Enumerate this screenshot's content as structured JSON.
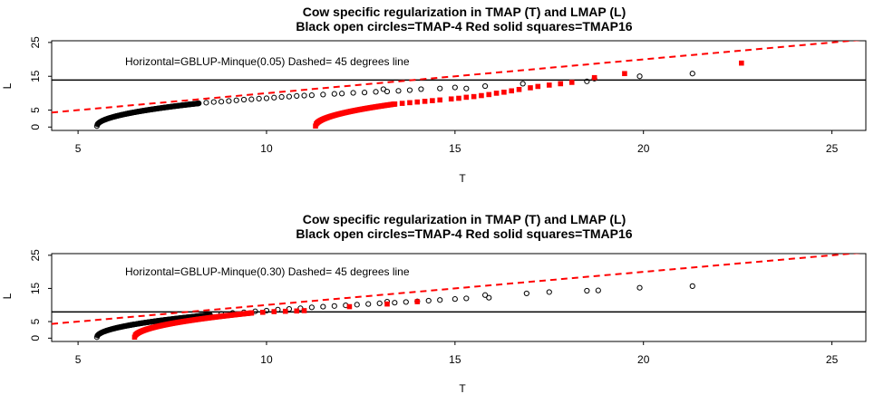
{
  "chart_data": [
    {
      "type": "scatter",
      "title_line1": "Cow specific regularization in TMAP (T) and LMAP (L)",
      "title_line2": "Black open circles=TMAP-4 Red solid squares=TMAP16",
      "xlabel": "T",
      "ylabel": "L",
      "xlim": [
        4.3,
        25.9
      ],
      "ylim": [
        -1,
        25.5
      ],
      "x_ticks": [
        5,
        10,
        15,
        20,
        25
      ],
      "y_ticks": [
        0,
        5,
        15,
        25
      ],
      "annotation": "Horizontal=GBLUP-Minque(0.05)  Dashed= 45 degrees line",
      "horizontal_line": 13.9,
      "diagonal_line": {
        "slope": 1,
        "intercept": 0
      },
      "colors": {
        "tmap4": "#000000",
        "tmap16": "#ff0000",
        "hline": "#000000",
        "dashed": "#ff0000"
      },
      "grid": false,
      "series": [
        {
          "name": "TMAP-4",
          "marker": "open-circle",
          "dense_curve": {
            "x0": 5.5,
            "x1": 8.2,
            "y0": 0.3,
            "y1": 7.0,
            "count": 180
          },
          "points": [
            [
              8.2,
              7.0
            ],
            [
              8.4,
              7.2
            ],
            [
              8.6,
              7.4
            ],
            [
              8.8,
              7.5
            ],
            [
              9.0,
              7.7
            ],
            [
              9.2,
              7.9
            ],
            [
              9.4,
              8.1
            ],
            [
              9.6,
              8.2
            ],
            [
              9.8,
              8.4
            ],
            [
              10.0,
              8.5
            ],
            [
              10.2,
              8.7
            ],
            [
              10.4,
              8.9
            ],
            [
              10.6,
              9.0
            ],
            [
              10.8,
              9.2
            ],
            [
              11.0,
              9.3
            ],
            [
              11.2,
              9.4
            ],
            [
              11.5,
              9.6
            ],
            [
              11.8,
              9.8
            ],
            [
              12.0,
              9.9
            ],
            [
              12.3,
              10.1
            ],
            [
              12.6,
              10.2
            ],
            [
              12.9,
              10.4
            ],
            [
              13.1,
              11.2
            ],
            [
              13.2,
              10.5
            ],
            [
              13.5,
              10.7
            ],
            [
              13.8,
              10.9
            ],
            [
              14.1,
              11.2
            ],
            [
              14.6,
              11.4
            ],
            [
              15.0,
              11.7
            ],
            [
              15.3,
              11.4
            ],
            [
              15.8,
              12.1
            ],
            [
              16.8,
              12.8
            ],
            [
              18.5,
              13.5
            ],
            [
              18.7,
              14.3
            ],
            [
              19.9,
              15.0
            ],
            [
              21.3,
              15.8
            ]
          ]
        },
        {
          "name": "TMAP16",
          "marker": "solid-square",
          "dense_curve": {
            "x0": 11.3,
            "x1": 13.4,
            "y0": 0.3,
            "y1": 6.8,
            "count": 100
          },
          "points": [
            [
              13.4,
              6.8
            ],
            [
              13.6,
              7.0
            ],
            [
              13.8,
              7.2
            ],
            [
              14.0,
              7.4
            ],
            [
              14.2,
              7.6
            ],
            [
              14.4,
              7.8
            ],
            [
              14.6,
              8.0
            ],
            [
              14.9,
              8.3
            ],
            [
              15.1,
              8.5
            ],
            [
              15.3,
              8.8
            ],
            [
              15.5,
              9.0
            ],
            [
              15.7,
              9.3
            ],
            [
              15.9,
              9.6
            ],
            [
              16.1,
              10.0
            ],
            [
              16.3,
              10.3
            ],
            [
              16.5,
              10.7
            ],
            [
              16.7,
              11.1
            ],
            [
              17.0,
              11.6
            ],
            [
              17.2,
              12.0
            ],
            [
              17.5,
              12.4
            ],
            [
              17.8,
              12.8
            ],
            [
              18.1,
              13.2
            ],
            [
              18.7,
              14.6
            ],
            [
              19.5,
              15.8
            ],
            [
              22.6,
              18.9
            ]
          ]
        }
      ]
    },
    {
      "type": "scatter",
      "title_line1": "Cow specific regularization in TMAP (T) and LMAP (L)",
      "title_line2": "Black open circles=TMAP-4 Red solid squares=TMAP16",
      "xlabel": "T",
      "ylabel": "L",
      "xlim": [
        4.3,
        25.9
      ],
      "ylim": [
        -1,
        25.5
      ],
      "x_ticks": [
        5,
        10,
        15,
        20,
        25
      ],
      "y_ticks": [
        0,
        5,
        15,
        25
      ],
      "annotation": "Horizontal=GBLUP-Minque(0.30)  Dashed= 45 degrees line",
      "horizontal_line": 7.9,
      "diagonal_line": {
        "slope": 1,
        "intercept": 0
      },
      "colors": {
        "tmap4": "#000000",
        "tmap16": "#ff0000",
        "hline": "#000000",
        "dashed": "#ff0000"
      },
      "grid": false,
      "series": [
        {
          "name": "TMAP-4",
          "marker": "open-circle",
          "dense_curve": {
            "x0": 5.5,
            "x1": 8.5,
            "y0": 0.3,
            "y1": 7.0,
            "count": 180
          },
          "points": [
            [
              8.5,
              7.0
            ],
            [
              8.8,
              7.3
            ],
            [
              9.1,
              7.6
            ],
            [
              9.4,
              7.8
            ],
            [
              9.7,
              8.1
            ],
            [
              10.0,
              8.3
            ],
            [
              10.3,
              8.6
            ],
            [
              10.6,
              8.8
            ],
            [
              10.9,
              9.0
            ],
            [
              11.2,
              9.3
            ],
            [
              11.5,
              9.5
            ],
            [
              11.8,
              9.7
            ],
            [
              12.1,
              9.9
            ],
            [
              12.4,
              10.1
            ],
            [
              12.7,
              10.3
            ],
            [
              13.0,
              10.5
            ],
            [
              13.2,
              11.0
            ],
            [
              13.4,
              10.7
            ],
            [
              13.7,
              10.9
            ],
            [
              14.0,
              11.1
            ],
            [
              14.3,
              11.3
            ],
            [
              14.6,
              11.5
            ],
            [
              15.0,
              11.8
            ],
            [
              15.3,
              12.0
            ],
            [
              15.8,
              13.0
            ],
            [
              15.9,
              12.2
            ],
            [
              16.9,
              13.5
            ],
            [
              17.5,
              13.9
            ],
            [
              18.5,
              14.3
            ],
            [
              18.8,
              14.4
            ],
            [
              19.9,
              15.2
            ],
            [
              21.3,
              15.7
            ]
          ]
        },
        {
          "name": "TMAP16",
          "marker": "solid-square",
          "dense_curve": {
            "x0": 6.5,
            "x1": 9.6,
            "y0": 0.3,
            "y1": 7.6,
            "count": 140
          },
          "points": [
            [
              9.6,
              7.6
            ],
            [
              9.9,
              7.8
            ],
            [
              10.2,
              8.0
            ],
            [
              10.5,
              8.1
            ],
            [
              10.8,
              8.2
            ],
            [
              11.0,
              8.3
            ],
            [
              12.2,
              9.5
            ],
            [
              13.2,
              10.3
            ],
            [
              14.0,
              11.0
            ]
          ]
        }
      ]
    }
  ]
}
